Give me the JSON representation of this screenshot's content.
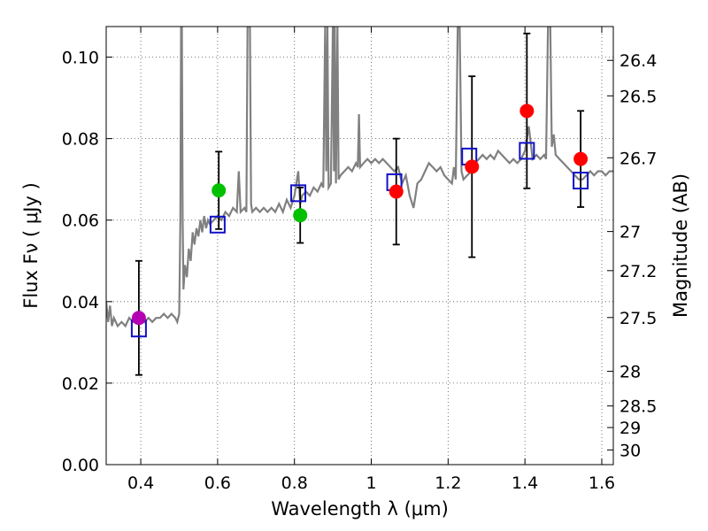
{
  "chart_data": {
    "type": "scatter",
    "xlabel": "Wavelength  λ (μm)",
    "ylabel": "Flux  Fν  ( μJy )",
    "ylabel_right": "Magnitude (AB)",
    "xlim": [
      0.31,
      1.63
    ],
    "ylim": [
      0.0,
      0.1075
    ],
    "grid": true,
    "x_ticks": [
      0.4,
      0.6,
      0.8,
      1.0,
      1.2,
      1.4,
      1.6
    ],
    "x_tick_labels": [
      "0.4",
      "0.6",
      "0.8",
      "1",
      "1.2",
      "1.4",
      "1.6"
    ],
    "y_ticks": [
      0.0,
      0.02,
      0.04,
      0.06,
      0.08,
      0.1
    ],
    "y_tick_labels": [
      "0.00",
      "0.02",
      "0.04",
      "0.06",
      "0.08",
      "0.10"
    ],
    "mag_ticks": [
      {
        "label": "26.4",
        "flux": 0.0992
      },
      {
        "label": "26.5",
        "flux": 0.0905
      },
      {
        "label": "26.7",
        "flux": 0.0753
      },
      {
        "label": "27",
        "flux": 0.0572
      },
      {
        "label": "27.2",
        "flux": 0.0476
      },
      {
        "label": "27.5",
        "flux": 0.0361
      },
      {
        "label": "28",
        "flux": 0.0229
      },
      {
        "label": "28.5",
        "flux": 0.0144
      },
      {
        "label": "29",
        "flux": 0.0091
      },
      {
        "label": "30",
        "flux": 0.0036
      }
    ],
    "observations": [
      {
        "x": 0.395,
        "y": 0.036,
        "err": 0.014,
        "color": "#b300b3"
      },
      {
        "x": 0.603,
        "y": 0.0673,
        "err": 0.0095,
        "color": "#00c000"
      },
      {
        "x": 0.815,
        "y": 0.0612,
        "err": 0.0068,
        "color": "#00c000"
      },
      {
        "x": 1.065,
        "y": 0.067,
        "err": 0.013,
        "color": "#ff0000"
      },
      {
        "x": 1.262,
        "y": 0.0731,
        "err": 0.0222,
        "color": "#ff0000"
      },
      {
        "x": 1.405,
        "y": 0.0868,
        "err": 0.019,
        "color": "#ff0000"
      },
      {
        "x": 1.545,
        "y": 0.075,
        "err": 0.0118,
        "color": "#ff0000"
      }
    ],
    "model_points": [
      {
        "x": 0.395,
        "y": 0.0334
      },
      {
        "x": 0.6,
        "y": 0.0589
      },
      {
        "x": 0.81,
        "y": 0.0666
      },
      {
        "x": 1.06,
        "y": 0.0693
      },
      {
        "x": 1.255,
        "y": 0.0756
      },
      {
        "x": 1.405,
        "y": 0.077
      },
      {
        "x": 1.545,
        "y": 0.0697
      }
    ],
    "sed_curve": [
      [
        0.31,
        0.04
      ],
      [
        0.315,
        0.035
      ],
      [
        0.32,
        0.039
      ],
      [
        0.325,
        0.034
      ],
      [
        0.33,
        0.036
      ],
      [
        0.34,
        0.034
      ],
      [
        0.35,
        0.035
      ],
      [
        0.36,
        0.034
      ],
      [
        0.37,
        0.036
      ],
      [
        0.38,
        0.035
      ],
      [
        0.39,
        0.036
      ],
      [
        0.4,
        0.037
      ],
      [
        0.41,
        0.035
      ],
      [
        0.42,
        0.036
      ],
      [
        0.43,
        0.035
      ],
      [
        0.44,
        0.036
      ],
      [
        0.45,
        0.036
      ],
      [
        0.46,
        0.037
      ],
      [
        0.47,
        0.036
      ],
      [
        0.48,
        0.037
      ],
      [
        0.49,
        0.036
      ],
      [
        0.495,
        0.035
      ],
      [
        0.5,
        0.037
      ],
      [
        0.503,
        0.06
      ],
      [
        0.505,
        0.1075
      ],
      [
        0.507,
        0.1075
      ],
      [
        0.509,
        0.06
      ],
      [
        0.511,
        0.043
      ],
      [
        0.515,
        0.049
      ],
      [
        0.52,
        0.046
      ],
      [
        0.525,
        0.053
      ],
      [
        0.53,
        0.05
      ],
      [
        0.535,
        0.057
      ],
      [
        0.54,
        0.054
      ],
      [
        0.545,
        0.058
      ],
      [
        0.55,
        0.056
      ],
      [
        0.555,
        0.06
      ],
      [
        0.56,
        0.057
      ],
      [
        0.565,
        0.061
      ],
      [
        0.57,
        0.058
      ],
      [
        0.575,
        0.06
      ],
      [
        0.58,
        0.059
      ],
      [
        0.59,
        0.06
      ],
      [
        0.6,
        0.061
      ],
      [
        0.61,
        0.06
      ],
      [
        0.62,
        0.062
      ],
      [
        0.63,
        0.061
      ],
      [
        0.64,
        0.063
      ],
      [
        0.65,
        0.062
      ],
      [
        0.655,
        0.072
      ],
      [
        0.66,
        0.062
      ],
      [
        0.67,
        0.063
      ],
      [
        0.675,
        0.062
      ],
      [
        0.678,
        0.1075
      ],
      [
        0.684,
        0.1075
      ],
      [
        0.687,
        0.064
      ],
      [
        0.69,
        0.062
      ],
      [
        0.7,
        0.063
      ],
      [
        0.71,
        0.062
      ],
      [
        0.72,
        0.063
      ],
      [
        0.73,
        0.062
      ],
      [
        0.74,
        0.063
      ],
      [
        0.75,
        0.062
      ],
      [
        0.76,
        0.064
      ],
      [
        0.77,
        0.062
      ],
      [
        0.78,
        0.065
      ],
      [
        0.79,
        0.063
      ],
      [
        0.8,
        0.066
      ],
      [
        0.81,
        0.072
      ],
      [
        0.815,
        0.064
      ],
      [
        0.82,
        0.066
      ],
      [
        0.83,
        0.067
      ],
      [
        0.84,
        0.066
      ],
      [
        0.85,
        0.068
      ],
      [
        0.86,
        0.067
      ],
      [
        0.87,
        0.069
      ],
      [
        0.875,
        0.068
      ],
      [
        0.88,
        0.1075
      ],
      [
        0.883,
        0.072
      ],
      [
        0.886,
        0.1075
      ],
      [
        0.889,
        0.068
      ],
      [
        0.895,
        0.069
      ],
      [
        0.9,
        0.1075
      ],
      [
        0.903,
        0.072
      ],
      [
        0.905,
        0.1075
      ],
      [
        0.908,
        0.069
      ],
      [
        0.912,
        0.1075
      ],
      [
        0.915,
        0.07
      ],
      [
        0.92,
        0.071
      ],
      [
        0.93,
        0.072
      ],
      [
        0.94,
        0.073
      ],
      [
        0.95,
        0.072
      ],
      [
        0.96,
        0.074
      ],
      [
        0.965,
        0.073
      ],
      [
        0.968,
        0.086
      ],
      [
        0.971,
        0.073
      ],
      [
        0.98,
        0.074
      ],
      [
        0.99,
        0.075
      ],
      [
        1.0,
        0.074
      ],
      [
        1.01,
        0.075
      ],
      [
        1.02,
        0.074
      ],
      [
        1.03,
        0.075
      ],
      [
        1.04,
        0.074
      ],
      [
        1.05,
        0.073
      ],
      [
        1.06,
        0.072
      ],
      [
        1.07,
        0.073
      ],
      [
        1.08,
        0.069
      ],
      [
        1.09,
        0.071
      ],
      [
        1.1,
        0.066
      ],
      [
        1.11,
        0.063
      ],
      [
        1.12,
        0.069
      ],
      [
        1.13,
        0.07
      ],
      [
        1.14,
        0.072
      ],
      [
        1.15,
        0.074
      ],
      [
        1.16,
        0.073
      ],
      [
        1.17,
        0.072
      ],
      [
        1.18,
        0.073
      ],
      [
        1.19,
        0.071
      ],
      [
        1.2,
        0.07
      ],
      [
        1.21,
        0.069
      ],
      [
        1.215,
        0.073
      ],
      [
        1.22,
        0.07
      ],
      [
        1.225,
        0.1075
      ],
      [
        1.23,
        0.1075
      ],
      [
        1.235,
        0.072
      ],
      [
        1.24,
        0.07
      ],
      [
        1.25,
        0.071
      ],
      [
        1.26,
        0.072
      ],
      [
        1.27,
        0.074
      ],
      [
        1.28,
        0.075
      ],
      [
        1.29,
        0.076
      ],
      [
        1.3,
        0.075
      ],
      [
        1.31,
        0.076
      ],
      [
        1.32,
        0.075
      ],
      [
        1.33,
        0.077
      ],
      [
        1.34,
        0.076
      ],
      [
        1.35,
        0.075
      ],
      [
        1.36,
        0.074
      ],
      [
        1.37,
        0.075
      ],
      [
        1.38,
        0.074
      ],
      [
        1.39,
        0.075
      ],
      [
        1.4,
        0.077
      ],
      [
        1.41,
        0.083
      ],
      [
        1.42,
        0.075
      ],
      [
        1.43,
        0.076
      ],
      [
        1.44,
        0.075
      ],
      [
        1.45,
        0.076
      ],
      [
        1.455,
        0.075
      ],
      [
        1.46,
        0.1075
      ],
      [
        1.466,
        0.1075
      ],
      [
        1.47,
        0.078
      ],
      [
        1.475,
        0.081
      ],
      [
        1.48,
        0.076
      ],
      [
        1.49,
        0.075
      ],
      [
        1.5,
        0.074
      ],
      [
        1.51,
        0.073
      ],
      [
        1.52,
        0.072
      ],
      [
        1.53,
        0.071
      ],
      [
        1.54,
        0.07
      ],
      [
        1.55,
        0.07
      ],
      [
        1.56,
        0.071
      ],
      [
        1.57,
        0.072
      ],
      [
        1.58,
        0.071
      ],
      [
        1.59,
        0.072
      ],
      [
        1.6,
        0.072
      ],
      [
        1.61,
        0.071
      ],
      [
        1.62,
        0.072
      ],
      [
        1.63,
        0.072
      ]
    ],
    "colors": {
      "sed": "#808080",
      "model_box": "#1010c8",
      "error_bar": "#000000",
      "grid": "#555555"
    }
  }
}
